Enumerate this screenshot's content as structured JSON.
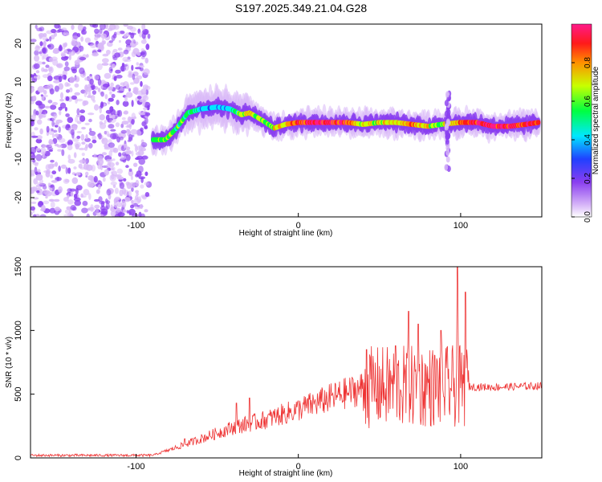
{
  "title": "S197.2025.349.21.04.G28",
  "chart_data": [
    {
      "type": "heatmap",
      "name": "spectrogram",
      "xlabel": "Height of straight line (km)",
      "ylabel": "Frequency (Hz)",
      "xlim": [
        -165,
        150
      ],
      "ylim": [
        -25,
        25
      ],
      "xticks": [
        -100,
        0,
        100
      ],
      "yticks": [
        -20,
        -10,
        0,
        10,
        20
      ],
      "colorbar": {
        "label": "Normalized spectral amplitude",
        "range": [
          0,
          1
        ],
        "ticks": [
          "0.0",
          "0.2",
          "0.4",
          "0.6",
          "0.8"
        ],
        "colors": [
          "#ffffff",
          "#d8b8f8",
          "#8a3ef0",
          "#2040ff",
          "#00e8ff",
          "#00ff40",
          "#c8ff00",
          "#ff9000",
          "#ff1a1a",
          "#ff1a8a"
        ]
      },
      "ridge": [
        {
          "x": -90,
          "y": -5,
          "a": 0.45
        },
        {
          "x": -82,
          "y": -5,
          "a": 0.5
        },
        {
          "x": -75,
          "y": -2,
          "a": 0.45
        },
        {
          "x": -68,
          "y": 2,
          "a": 0.45
        },
        {
          "x": -60,
          "y": 3,
          "a": 0.3
        },
        {
          "x": -50,
          "y": 3.5,
          "a": 0.3
        },
        {
          "x": -42,
          "y": 3,
          "a": 0.3
        },
        {
          "x": -35,
          "y": 1.5,
          "a": 0.5
        },
        {
          "x": -30,
          "y": 2,
          "a": 0.6
        },
        {
          "x": -22,
          "y": 0,
          "a": 0.5
        },
        {
          "x": -15,
          "y": -2,
          "a": 0.55
        },
        {
          "x": -8,
          "y": -1,
          "a": 0.6
        },
        {
          "x": 0,
          "y": -0.5,
          "a": 0.85
        },
        {
          "x": 10,
          "y": -0.5,
          "a": 0.9
        },
        {
          "x": 20,
          "y": -0.5,
          "a": 0.85
        },
        {
          "x": 30,
          "y": -0.5,
          "a": 0.8
        },
        {
          "x": 40,
          "y": -1,
          "a": 0.55
        },
        {
          "x": 50,
          "y": -0.5,
          "a": 0.55
        },
        {
          "x": 60,
          "y": -0.5,
          "a": 0.6
        },
        {
          "x": 70,
          "y": -1,
          "a": 0.7
        },
        {
          "x": 80,
          "y": -1.5,
          "a": 0.55
        },
        {
          "x": 88,
          "y": -1,
          "a": 0.5
        },
        {
          "x": 100,
          "y": -0.5,
          "a": 0.7
        },
        {
          "x": 110,
          "y": -0.5,
          "a": 0.85
        },
        {
          "x": 120,
          "y": -1.5,
          "a": 0.9
        },
        {
          "x": 130,
          "y": -1.5,
          "a": 0.85
        },
        {
          "x": 140,
          "y": -1,
          "a": 0.8
        },
        {
          "x": 148,
          "y": -0.5,
          "a": 0.8
        }
      ]
    },
    {
      "type": "line",
      "name": "snr",
      "xlabel": "Height of straight line (km)",
      "ylabel": "SNR (10 * v/v)",
      "xlim": [
        -165,
        150
      ],
      "ylim": [
        0,
        1500
      ],
      "xticks": [
        -100,
        0,
        100
      ],
      "yticks": [
        0,
        500,
        1000,
        1500
      ],
      "color": "#ee3333",
      "envelope": [
        {
          "x": -165,
          "y": 20
        },
        {
          "x": -90,
          "y": 20
        },
        {
          "x": -80,
          "y": 60
        },
        {
          "x": -60,
          "y": 150
        },
        {
          "x": -40,
          "y": 240
        },
        {
          "x": -20,
          "y": 300
        },
        {
          "x": 0,
          "y": 380
        },
        {
          "x": 20,
          "y": 470
        },
        {
          "x": 40,
          "y": 550
        },
        {
          "x": 60,
          "y": 560
        },
        {
          "x": 80,
          "y": 560
        },
        {
          "x": 100,
          "y": 560
        },
        {
          "x": 120,
          "y": 555
        },
        {
          "x": 150,
          "y": 565
        }
      ],
      "spikes": [
        {
          "x": -70,
          "y": 150
        },
        {
          "x": -38,
          "y": 430
        },
        {
          "x": -30,
          "y": 470
        },
        {
          "x": 42,
          "y": 850
        },
        {
          "x": 60,
          "y": 880
        },
        {
          "x": 68,
          "y": 1150
        },
        {
          "x": 74,
          "y": 1050
        },
        {
          "x": 88,
          "y": 1000
        },
        {
          "x": 98,
          "y": 1500
        },
        {
          "x": 103,
          "y": 1300
        }
      ]
    }
  ]
}
